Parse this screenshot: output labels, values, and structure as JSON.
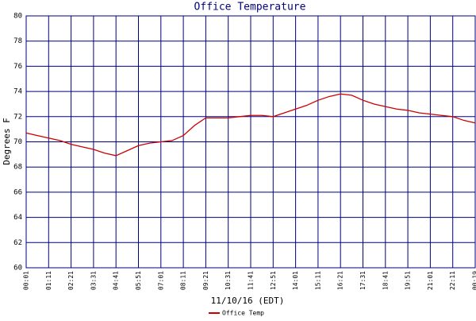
{
  "chart_data": {
    "type": "line",
    "title": "Office Temperature",
    "x_label": "11/10/16 (EDT)",
    "y_label": "Degrees F",
    "categories": [
      "00:01",
      null,
      "01:11",
      null,
      "02:21",
      null,
      "03:31",
      null,
      "04:41",
      null,
      "05:51",
      null,
      "07:01",
      null,
      "08:11",
      null,
      "09:21",
      null,
      "10:31",
      null,
      "11:41",
      null,
      "12:51",
      null,
      "14:01",
      null,
      "15:11",
      null,
      "16:21",
      null,
      "17:31",
      null,
      "18:41",
      null,
      "19:51",
      null,
      "21:01",
      null,
      "22:11",
      null,
      "00:19"
    ],
    "series": [
      {
        "name": "Office Temp",
        "color": "#cc0000",
        "values": [
          70.7,
          70.5,
          70.3,
          70.1,
          69.8,
          69.6,
          69.4,
          69.1,
          68.9,
          69.3,
          69.7,
          69.9,
          70.0,
          70.1,
          70.5,
          71.3,
          71.9,
          71.9,
          71.9,
          72.0,
          72.1,
          72.1,
          72.0,
          72.3,
          72.6,
          72.9,
          73.3,
          73.6,
          73.8,
          73.7,
          73.3,
          73.0,
          72.8,
          72.6,
          72.5,
          72.3,
          72.2,
          72.1,
          72.0,
          71.7,
          71.5
        ]
      }
    ],
    "ylim": [
      60,
      80
    ],
    "yticks": [
      60,
      62,
      64,
      66,
      68,
      70,
      72,
      74,
      76,
      78,
      80
    ],
    "grid": true,
    "grid_color": "#000080",
    "legend": "bottom"
  }
}
